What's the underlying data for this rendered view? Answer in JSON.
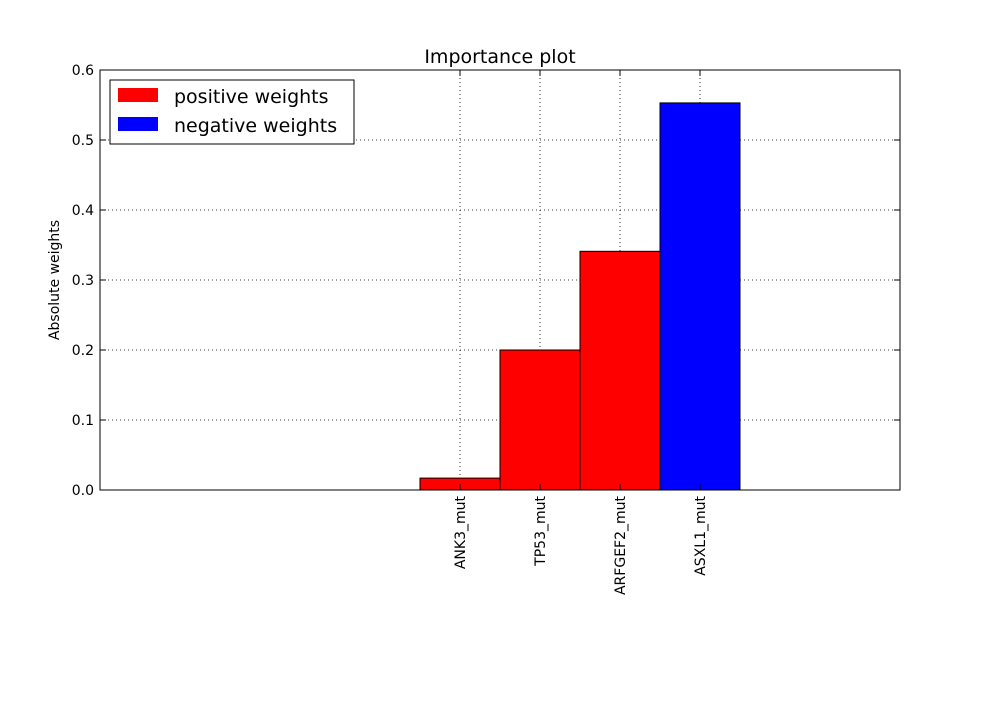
{
  "chart_data": {
    "type": "bar",
    "title": "Importance plot",
    "xlabel": "",
    "ylabel": "Absolute weights",
    "categories": [
      "ANK3_mut",
      "TP53_mut",
      "ARFGEF2_mut",
      "ASXL1_mut"
    ],
    "values": [
      0.017,
      0.2,
      0.341,
      0.553
    ],
    "bar_sign": [
      "positive",
      "positive",
      "positive",
      "negative"
    ],
    "ylim": [
      0,
      0.6
    ],
    "yticks": [
      "0.0",
      "0.1",
      "0.2",
      "0.3",
      "0.4",
      "0.5",
      "0.6"
    ],
    "grid": true,
    "legend": {
      "placement": "top-left",
      "entries": [
        {
          "label": "positive weights",
          "color": "#ff0000"
        },
        {
          "label": "negative weights",
          "color": "#0000ff"
        }
      ]
    },
    "colors": {
      "positive": "#ff0000",
      "negative": "#0000ff"
    }
  }
}
